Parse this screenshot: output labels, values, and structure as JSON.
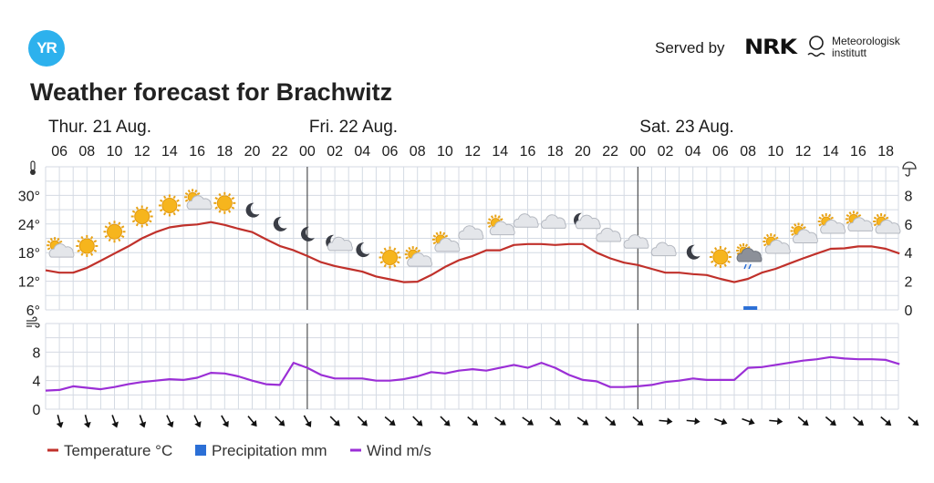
{
  "header": {
    "logo_text": "YR",
    "served_by": "Served by",
    "nrk_logo_text": "NRK",
    "met_logo_line1": "Meteorologisk",
    "met_logo_line2": "institutt",
    "title": "Weather forecast for Brachwitz"
  },
  "colors": {
    "temperature": "#c0312b",
    "precipitation": "#2b6fd6",
    "wind": "#9b2fd6",
    "grid": "#d4dae3",
    "logo": "#2db1ed"
  },
  "chart_data": {
    "type": "line",
    "days": [
      {
        "label": "Thur. 21 Aug."
      },
      {
        "label": "Fri. 22 Aug."
      },
      {
        "label": "Sat. 23 Aug."
      }
    ],
    "x_ticks": [
      "06",
      "08",
      "10",
      "12",
      "14",
      "16",
      "18",
      "20",
      "22",
      "00",
      "02",
      "04",
      "06",
      "08",
      "10",
      "12",
      "14",
      "16",
      "18",
      "20",
      "22",
      "00",
      "02",
      "04",
      "06",
      "08",
      "10",
      "12",
      "14",
      "16",
      "18"
    ],
    "temperature_axis": {
      "ticks": [
        "6°",
        "12°",
        "18°",
        "24°",
        "30°"
      ],
      "ylim": [
        6,
        36
      ]
    },
    "precipitation_axis": {
      "ticks": [
        "0",
        "2",
        "4",
        "6",
        "8"
      ],
      "ylim": [
        0,
        10
      ]
    },
    "wind_axis": {
      "ticks": [
        "0",
        "4",
        "8"
      ],
      "ylim": [
        0,
        12
      ]
    },
    "temperature_series": {
      "name": "Temperature °C",
      "unit": "°C",
      "x": [
        5,
        6,
        7,
        8,
        9,
        10,
        11,
        12,
        13,
        14,
        15,
        16,
        17,
        18,
        19,
        20,
        21,
        22,
        23,
        24,
        25,
        26,
        27,
        28,
        29,
        30,
        31,
        32,
        33,
        34,
        35,
        36,
        37,
        38,
        39,
        40,
        41,
        42,
        43,
        44,
        45,
        46,
        47,
        48,
        49,
        50,
        51,
        52,
        53,
        54,
        55,
        56,
        57,
        58,
        59,
        60,
        61,
        62,
        63,
        64,
        65,
        66,
        67
      ],
      "values": [
        14.3,
        13.8,
        13.8,
        14.8,
        16.3,
        17.8,
        19.3,
        21.0,
        22.3,
        23.3,
        23.7,
        23.9,
        24.4,
        23.8,
        23.0,
        22.3,
        20.8,
        19.4,
        18.5,
        17.3,
        16.0,
        15.2,
        14.6,
        14.0,
        13.0,
        12.4,
        11.8,
        11.9,
        13.3,
        15.0,
        16.4,
        17.3,
        18.5,
        18.5,
        19.6,
        19.8,
        19.8,
        19.6,
        19.8,
        19.8,
        18.0,
        16.8,
        15.9,
        15.4,
        14.6,
        13.8,
        13.8,
        13.5,
        13.3,
        12.5,
        11.8,
        12.5,
        13.8,
        14.6,
        15.7,
        16.8,
        17.8,
        18.8,
        18.9,
        19.3,
        19.3,
        18.8,
        17.8
      ]
    },
    "precipitation_series": {
      "name": "Precipitation mm",
      "unit": "mm",
      "bars": [
        {
          "x": 56,
          "value": 0.25
        }
      ]
    },
    "wind_series": {
      "name": "Wind m/s",
      "unit": "m/s",
      "x": [
        5,
        6,
        7,
        8,
        9,
        10,
        11,
        12,
        13,
        14,
        15,
        16,
        17,
        18,
        19,
        20,
        21,
        22,
        23,
        24,
        25,
        26,
        27,
        28,
        29,
        30,
        31,
        32,
        33,
        34,
        35,
        36,
        37,
        38,
        39,
        40,
        41,
        42,
        43,
        44,
        45,
        46,
        47,
        48,
        49,
        50,
        51,
        52,
        53,
        54,
        55,
        56,
        57,
        58,
        59,
        60,
        61,
        62,
        63,
        64,
        65,
        66,
        67
      ],
      "values": [
        2.6,
        2.7,
        3.2,
        3.0,
        2.8,
        3.1,
        3.5,
        3.8,
        4.0,
        4.2,
        4.1,
        4.4,
        5.1,
        5.0,
        4.6,
        4.0,
        3.5,
        3.4,
        6.5,
        5.8,
        4.8,
        4.3,
        4.3,
        4.3,
        4.0,
        4.0,
        4.2,
        4.6,
        5.2,
        5.0,
        5.4,
        5.6,
        5.4,
        5.8,
        6.2,
        5.8,
        6.5,
        5.8,
        4.8,
        4.1,
        3.9,
        3.1,
        3.1,
        3.2,
        3.4,
        3.8,
        4.0,
        4.3,
        4.1,
        4.1,
        4.1,
        5.8,
        5.9,
        6.2,
        6.5,
        6.8,
        7.0,
        7.3,
        7.1,
        7.0,
        7.0,
        6.9,
        6.3
      ]
    },
    "symbols": [
      {
        "x": 6,
        "icon": "partly-cloudy-icon"
      },
      {
        "x": 8,
        "icon": "sun-icon"
      },
      {
        "x": 10,
        "icon": "sun-icon"
      },
      {
        "x": 12,
        "icon": "sun-icon"
      },
      {
        "x": 14,
        "icon": "sun-icon"
      },
      {
        "x": 16,
        "icon": "partly-cloudy-icon"
      },
      {
        "x": 18,
        "icon": "sun-icon"
      },
      {
        "x": 20,
        "icon": "moon-icon"
      },
      {
        "x": 22,
        "icon": "moon-icon"
      },
      {
        "x": 24,
        "icon": "moon-icon"
      },
      {
        "x": 26,
        "icon": "moon-cloud-icon"
      },
      {
        "x": 28,
        "icon": "moon-icon"
      },
      {
        "x": 30,
        "icon": "sun-icon"
      },
      {
        "x": 32,
        "icon": "partly-cloudy-icon"
      },
      {
        "x": 34,
        "icon": "partly-cloudy-icon"
      },
      {
        "x": 36,
        "icon": "cloud-icon"
      },
      {
        "x": 38,
        "icon": "partly-cloudy-icon"
      },
      {
        "x": 40,
        "icon": "cloud-icon"
      },
      {
        "x": 42,
        "icon": "cloud-icon"
      },
      {
        "x": 44,
        "icon": "moon-cloud-icon"
      },
      {
        "x": 46,
        "icon": "cloud-icon"
      },
      {
        "x": 48,
        "icon": "cloud-icon"
      },
      {
        "x": 50,
        "icon": "cloud-icon"
      },
      {
        "x": 52,
        "icon": "moon-icon"
      },
      {
        "x": 54,
        "icon": "sun-icon"
      },
      {
        "x": 56,
        "icon": "rain-cloud-icon"
      },
      {
        "x": 58,
        "icon": "partly-cloudy-icon"
      },
      {
        "x": 60,
        "icon": "partly-cloudy-icon"
      },
      {
        "x": 62,
        "icon": "partly-cloudy-icon"
      },
      {
        "x": 64,
        "icon": "partly-cloudy-icon"
      },
      {
        "x": 66,
        "icon": "partly-cloudy-icon"
      }
    ],
    "wind_directions_deg": [
      -15,
      -15,
      -20,
      -20,
      -25,
      -25,
      -30,
      -40,
      -45,
      -30,
      -45,
      -45,
      -50,
      -45,
      -45,
      -50,
      -55,
      -55,
      -55,
      -55,
      -50,
      -50,
      -85,
      -85,
      -70,
      -70,
      -85,
      -50,
      -50,
      -50,
      -50,
      -50
    ],
    "legend": {
      "position": "bottom-left",
      "items": [
        {
          "label": "Temperature °C",
          "color": "#c0312b",
          "kind": "line"
        },
        {
          "label": "Precipitation mm",
          "color": "#2b6fd6",
          "kind": "square"
        },
        {
          "label": "Wind m/s",
          "color": "#9b2fd6",
          "kind": "line"
        }
      ]
    },
    "grid": true
  }
}
